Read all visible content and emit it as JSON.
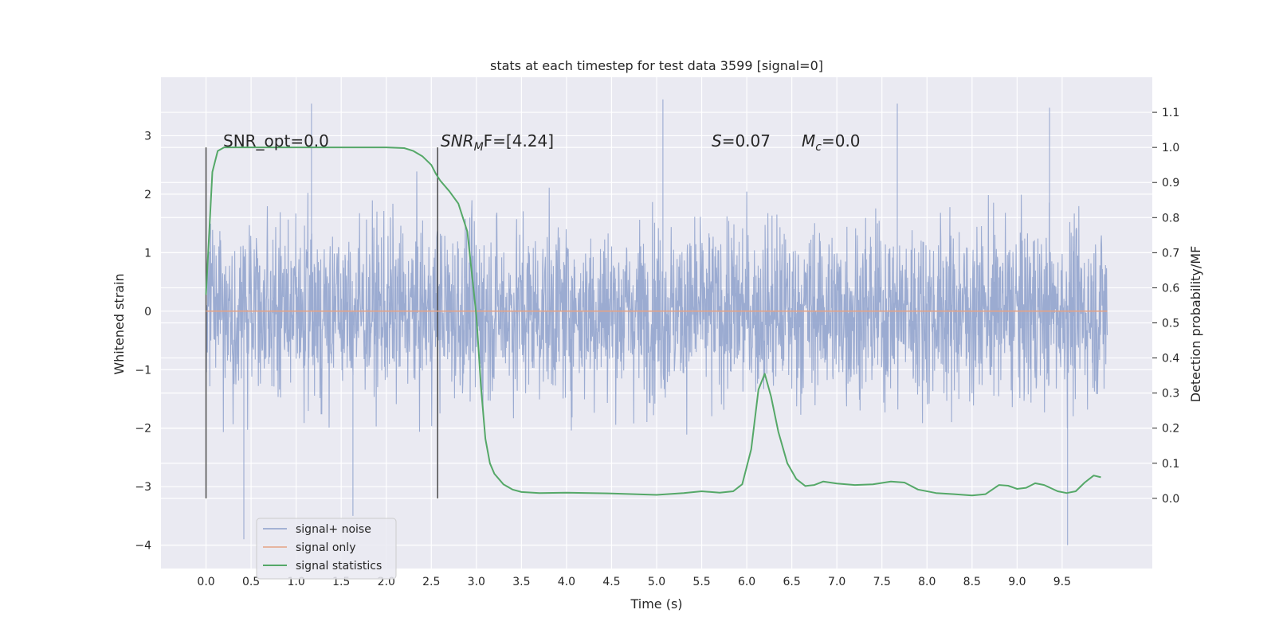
{
  "chart_data": {
    "type": "line",
    "title": "stats at each timestep for test data 3599 [signal=0]",
    "xlabel": "Time (s)",
    "ylabel": "Whitened strain",
    "ylabel_right": "Detection probability/MF",
    "xlim": [
      -0.5,
      10.5
    ],
    "ylim": [
      -4.4,
      4.0
    ],
    "ylim_right": [
      -0.2,
      1.2
    ],
    "x_ticks": [
      "0.0",
      "0.5",
      "1.0",
      "1.5",
      "2.0",
      "2.5",
      "3.0",
      "3.5",
      "4.0",
      "4.5",
      "5.0",
      "5.5",
      "6.0",
      "6.5",
      "7.0",
      "7.5",
      "8.0",
      "8.5",
      "9.0",
      "9.5"
    ],
    "y_ticks": [
      "3",
      "2",
      "1",
      "0",
      "−1",
      "−2",
      "−3",
      "−4"
    ],
    "y_ticks_right": [
      "1.1",
      "1.0",
      "0.9",
      "0.8",
      "0.7",
      "0.6",
      "0.5",
      "0.4",
      "0.3",
      "0.2",
      "0.1",
      "0.0"
    ],
    "grid": true,
    "legend_position": "lower-left",
    "annotations": {
      "snr_opt": "SNR_opt=0.0",
      "snr_mf_main": "SNR",
      "snr_mf_sub": "M",
      "snr_mf_rest": "F=[4.24]",
      "s_main": "S",
      "s_rest": "=0.07",
      "mc_main": "M",
      "mc_sub": "c",
      "mc_rest": "=0.0"
    },
    "vlines": [
      0.0,
      2.57
    ],
    "series": [
      {
        "name": "signal+ noise",
        "color": "#8da0cb",
        "axis": "left",
        "x_range": [
          0.0,
          10.0
        ],
        "envelope": "noise, mostly within ±1.5 with spikes to about 3.6 and -4.0",
        "spikes": [
          {
            "x": 1.17,
            "y": 3.55
          },
          {
            "x": 5.07,
            "y": 3.62
          },
          {
            "x": 7.67,
            "y": 3.55
          },
          {
            "x": 9.36,
            "y": 3.48
          },
          {
            "x": 0.42,
            "y": -3.9
          },
          {
            "x": 1.63,
            "y": -3.5
          },
          {
            "x": 9.56,
            "y": -4.0
          }
        ]
      },
      {
        "name": "signal only",
        "color": "#e5a385",
        "axis": "left",
        "x": [
          0.0,
          10.0
        ],
        "y": [
          0.0,
          0.0
        ]
      },
      {
        "name": "signal statistics",
        "color": "#55a868",
        "axis": "right",
        "x": [
          0.0,
          0.07,
          0.13,
          0.2,
          0.3,
          0.5,
          1.0,
          1.5,
          2.0,
          2.2,
          2.3,
          2.4,
          2.5,
          2.55,
          2.6,
          2.7,
          2.8,
          2.9,
          3.0,
          3.05,
          3.1,
          3.15,
          3.2,
          3.3,
          3.4,
          3.5,
          3.7,
          4.0,
          4.5,
          5.0,
          5.3,
          5.5,
          5.7,
          5.85,
          5.95,
          6.05,
          6.13,
          6.2,
          6.27,
          6.35,
          6.45,
          6.55,
          6.65,
          6.75,
          6.85,
          7.0,
          7.2,
          7.4,
          7.6,
          7.75,
          7.9,
          8.1,
          8.3,
          8.5,
          8.65,
          8.8,
          8.9,
          9.0,
          9.1,
          9.2,
          9.3,
          9.45,
          9.55,
          9.65,
          9.75,
          9.85,
          9.93
        ],
        "y": [
          0.58,
          0.93,
          0.99,
          1.0,
          1.0,
          1.0,
          1.0,
          1.0,
          1.0,
          0.998,
          0.99,
          0.975,
          0.95,
          0.925,
          0.905,
          0.875,
          0.84,
          0.76,
          0.52,
          0.32,
          0.17,
          0.1,
          0.07,
          0.04,
          0.025,
          0.018,
          0.015,
          0.016,
          0.014,
          0.01,
          0.015,
          0.02,
          0.016,
          0.02,
          0.04,
          0.14,
          0.31,
          0.355,
          0.29,
          0.19,
          0.1,
          0.055,
          0.035,
          0.038,
          0.048,
          0.042,
          0.038,
          0.04,
          0.048,
          0.045,
          0.025,
          0.015,
          0.012,
          0.008,
          0.012,
          0.038,
          0.036,
          0.027,
          0.03,
          0.043,
          0.038,
          0.02,
          0.015,
          0.02,
          0.045,
          0.065,
          0.06
        ]
      }
    ]
  }
}
